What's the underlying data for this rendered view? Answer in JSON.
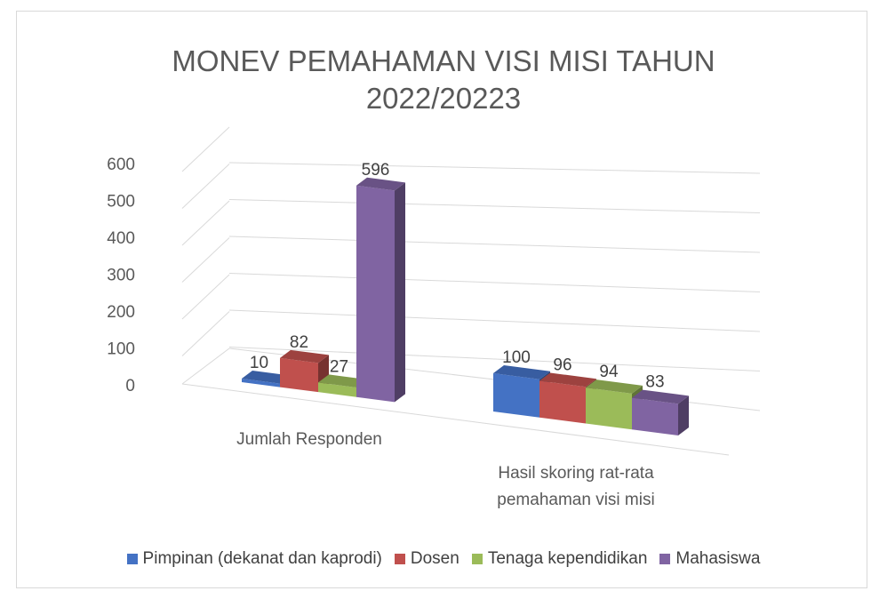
{
  "chart_data": {
    "type": "bar",
    "title": "MONEV PEMAHAMAN VISI  MISI TAHUN 2022/20223",
    "title_lines": [
      "MONEV PEMAHAMAN VISI  MISI TAHUN",
      "2022/20223"
    ],
    "categories": [
      "Jumlah Responden",
      "Hasil skoring rat-rata pemahaman visi misi"
    ],
    "category_lines": [
      [
        "Jumlah Responden"
      ],
      [
        "Hasil skoring rat-rata",
        "pemahaman visi misi"
      ]
    ],
    "series": [
      {
        "name": "Pimpinan (dekanat dan kaprodi)",
        "values": [
          10,
          100
        ],
        "color": "#4472c4"
      },
      {
        "name": "Dosen",
        "values": [
          82,
          96
        ],
        "color": "#c0504d"
      },
      {
        "name": "Tenaga kependidikan",
        "values": [
          27,
          94
        ],
        "color": "#9bbb59"
      },
      {
        "name": "Mahasiswa",
        "values": [
          596,
          83
        ],
        "color": "#8064a2"
      }
    ],
    "yticks": [
      0,
      100,
      200,
      300,
      400,
      500,
      600
    ],
    "ylim": [
      0,
      600
    ],
    "grid": true,
    "legend_position": "bottom",
    "three_d": true
  }
}
